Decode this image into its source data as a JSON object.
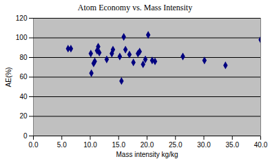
{
  "chart_data": {
    "type": "scatter",
    "title": "Atom Economy vs. Mass Intensity",
    "x_label": "Mass intensity kg/kg",
    "y_label": "AE(%)",
    "x": [
      6.1,
      6.6,
      10.1,
      10.2,
      10.6,
      10.8,
      11.2,
      11.4,
      11.6,
      12.9,
      13.8,
      14.0,
      15.2,
      15.5,
      15.9,
      16.2,
      16.9,
      17.6,
      18.4,
      18.7,
      19.3,
      19.7,
      20.2,
      20.9,
      21.4,
      26.3,
      30.1,
      33.8,
      40.0
    ],
    "values": [
      89,
      89,
      84,
      64,
      74,
      76,
      87,
      91,
      85,
      78,
      84,
      88,
      81,
      56,
      101,
      88,
      83,
      75,
      84,
      86,
      73,
      78,
      103,
      77,
      76,
      81,
      77,
      72,
      98
    ],
    "color": "#000080",
    "marker": "diamond",
    "xlim": [
      0,
      40
    ],
    "xticks": [
      {
        "value": 0,
        "label": "0.0"
      },
      {
        "value": 5,
        "label": "5.0"
      },
      {
        "value": 10,
        "label": "10.0"
      },
      {
        "value": 15,
        "label": "15.0"
      },
      {
        "value": 20,
        "label": "20.0"
      },
      {
        "value": 25,
        "label": "25.0"
      },
      {
        "value": 30,
        "label": "30.0"
      },
      {
        "value": 35,
        "label": "35.0"
      },
      {
        "value": 40,
        "label": "40.0"
      }
    ],
    "ylim": [
      0,
      120
    ],
    "yticks": [
      0,
      20,
      40,
      60,
      80,
      100,
      120
    ],
    "grid": true
  }
}
